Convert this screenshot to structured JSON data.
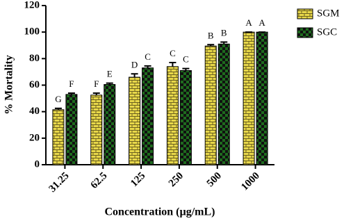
{
  "chart_data": {
    "type": "bar",
    "x_label": "Concentration (µg/mL)",
    "y_label": "% Mortality",
    "categories": [
      "31.25",
      "62.5",
      "125",
      "250",
      "500",
      "1000"
    ],
    "series": [
      {
        "name": "SGM",
        "color": "#e8d84a",
        "pattern": "brick",
        "values": [
          41.5,
          52.5,
          66,
          74,
          89.5,
          100
        ],
        "errors": [
          1,
          1.5,
          2.5,
          3,
          1,
          0
        ],
        "annotations": [
          "G",
          "F",
          "D",
          "C",
          "B",
          "A"
        ]
      },
      {
        "name": "SGC",
        "color": "#1e6b1e",
        "pattern": "checker",
        "values": [
          53,
          60.5,
          73,
          71,
          91,
          100
        ],
        "errors": [
          1,
          1,
          1.5,
          1.5,
          1.5,
          0
        ],
        "annotations": [
          "F",
          "E",
          "C",
          "C",
          "B",
          "A"
        ]
      }
    ],
    "ylim": [
      0,
      120
    ],
    "yticks": [
      0,
      20,
      40,
      60,
      80,
      100,
      120
    ],
    "legend": "top-right",
    "grid": false
  }
}
